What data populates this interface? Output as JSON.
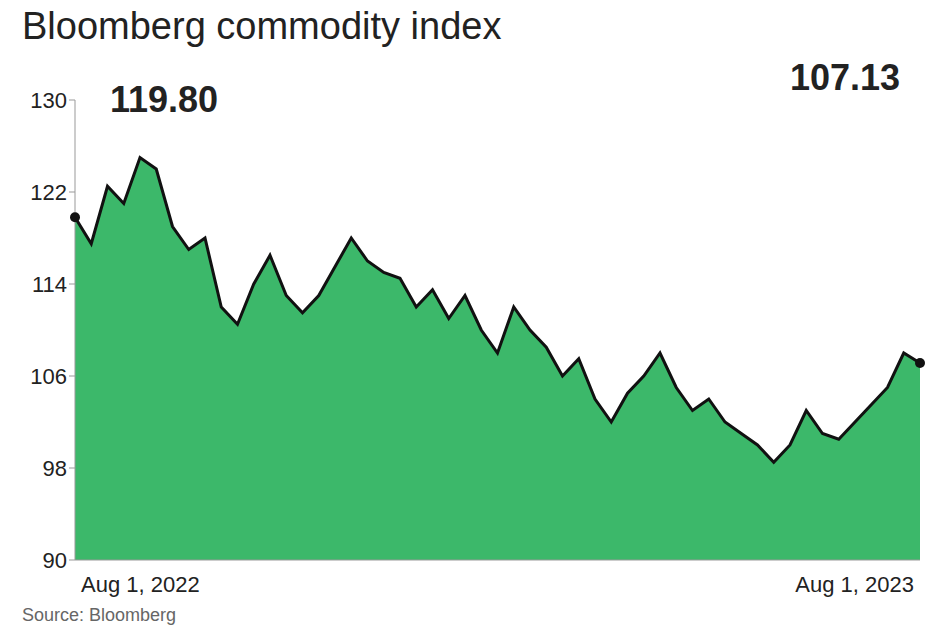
{
  "chart_data": {
    "type": "area",
    "title": "Bloomberg commodity index",
    "source": "Source: Bloomberg",
    "annotations": [
      "119.80",
      "107.13"
    ],
    "categories": [
      "Aug 1, 2022",
      null,
      null,
      null,
      null,
      null,
      null,
      null,
      null,
      null,
      null,
      null,
      null,
      null,
      null,
      null,
      null,
      null,
      null,
      null,
      null,
      null,
      null,
      null,
      null,
      null,
      null,
      null,
      null,
      null,
      null,
      null,
      null,
      null,
      null,
      null,
      null,
      null,
      null,
      null,
      null,
      null,
      null,
      null,
      null,
      null,
      null,
      null,
      null,
      null,
      null,
      null,
      "Aug 1, 2023"
    ],
    "values": [
      119.8,
      117.5,
      122.5,
      121,
      125,
      124,
      119,
      117,
      118,
      112,
      110.5,
      114,
      116.5,
      113,
      111.5,
      113,
      115.5,
      118,
      116,
      115,
      114.5,
      112,
      113.5,
      111,
      113,
      110,
      108,
      112,
      110,
      108.5,
      106,
      107.5,
      104,
      102,
      104.5,
      106,
      108,
      105,
      103,
      104,
      102,
      101,
      100,
      98.5,
      100,
      103,
      101,
      100.5,
      102,
      103.5,
      105,
      108,
      107.13
    ],
    "color": "#3cb86a",
    "ylim": [
      90,
      130
    ],
    "yticks": [
      90,
      98,
      106,
      114,
      122,
      130
    ]
  }
}
